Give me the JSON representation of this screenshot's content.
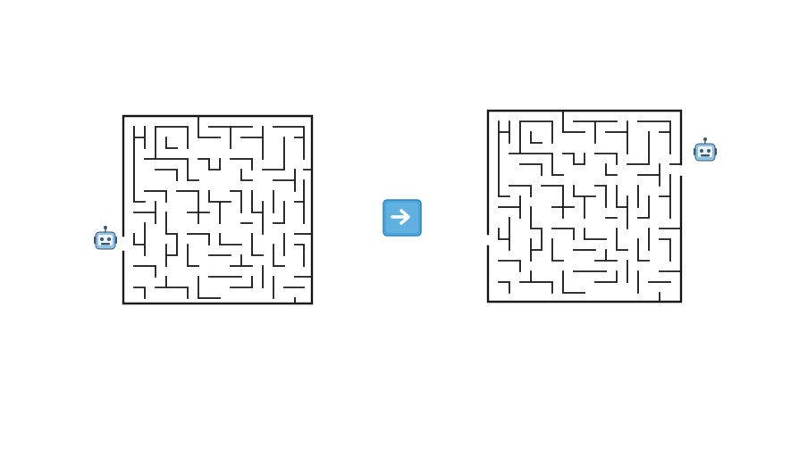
{
  "colors": {
    "background": "#ffffff",
    "wall": "#1a1a1a",
    "arrow_key": "#4aa6dc",
    "arrow_key_edge": "#2f86bd",
    "arrow_glyph": "#ffffff",
    "robot_body": "#8ec3e6",
    "robot_face": "#e9f3fa",
    "robot_dark": "#3d5a6c"
  },
  "icons": {
    "robot": "robot-icon",
    "arrow": "right-arrow-icon"
  },
  "scenes": [
    {
      "label": "before",
      "robot_position": "left-side-entrance"
    },
    {
      "label": "after",
      "robot_position": "right-side-exit"
    }
  ]
}
